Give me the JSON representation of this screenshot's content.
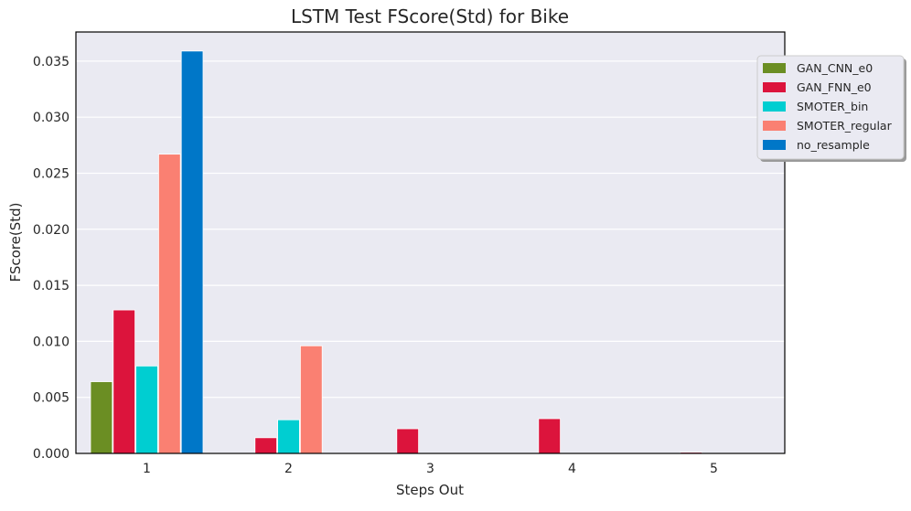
{
  "chart_data": {
    "type": "bar",
    "title": "LSTM Test FScore(Std) for Bike",
    "xlabel": "Steps Out",
    "ylabel": "FScore(Std)",
    "categories": [
      "1",
      "2",
      "3",
      "4",
      "5"
    ],
    "ylim": [
      0,
      0.0376
    ],
    "yticks": [
      0.0,
      0.005,
      0.01,
      0.015,
      0.02,
      0.025,
      0.03,
      0.035
    ],
    "ytick_labels": [
      "0.000",
      "0.005",
      "0.010",
      "0.015",
      "0.020",
      "0.025",
      "0.030",
      "0.035"
    ],
    "grid": true,
    "legend_position": "upper-right-outside",
    "series": [
      {
        "name": "GAN_CNN_e0",
        "color": "#6b8e23",
        "values": [
          0.0064,
          0.0,
          0.0,
          0.0,
          0.0
        ]
      },
      {
        "name": "GAN_FNN_e0",
        "color": "#dc143c",
        "values": [
          0.0128,
          0.0014,
          0.0022,
          0.0031,
          0.0001
        ]
      },
      {
        "name": "SMOTER_bin",
        "color": "#00ced1",
        "values": [
          0.0078,
          0.003,
          0.0,
          0.0,
          0.0
        ]
      },
      {
        "name": "SMOTER_regular",
        "color": "#fa8072",
        "values": [
          0.0267,
          0.0096,
          0.0,
          0.0,
          0.0
        ]
      },
      {
        "name": "no_resample",
        "color": "#0077c8",
        "values": [
          0.0359,
          0.0,
          0.0,
          0.0,
          0.0
        ]
      }
    ]
  }
}
